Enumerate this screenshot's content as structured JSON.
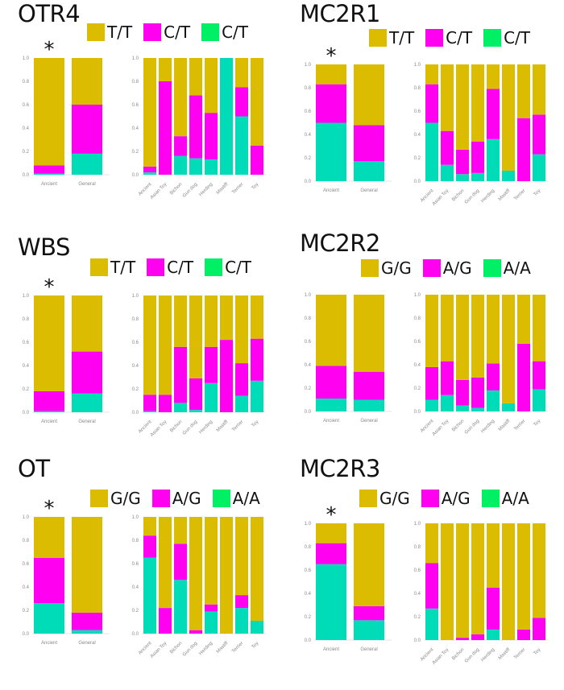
{
  "colors": {
    "top": "#dcbc00",
    "mid": "#ff00f0",
    "bottom": "#00dbb8",
    "legend_bottom": "#00f065"
  },
  "chart_data": [
    {
      "type": "bar",
      "stacked": true,
      "title": "OTR4",
      "legend": [
        "T/T",
        "C/T",
        "C/T"
      ],
      "significance_marker": "*",
      "significance_on": "Ancient",
      "ylim": [
        0,
        1
      ],
      "yticks": [
        "0.0",
        "0.2",
        "0.4",
        "0.6",
        "0.8",
        "1.0"
      ],
      "left": {
        "categories": [
          "Ancient",
          "General"
        ],
        "series": [
          {
            "name": "bottom",
            "values": [
              0.01,
              0.18
            ]
          },
          {
            "name": "mid",
            "values": [
              0.07,
              0.42
            ]
          },
          {
            "name": "top",
            "values": [
              0.92,
              0.4
            ]
          }
        ]
      },
      "right": {
        "categories": [
          "Ancient",
          "Asian Toy",
          "Bichon",
          "Gun dog",
          "Herding",
          "Mastiff",
          "Terrier",
          "Toy"
        ],
        "series": [
          {
            "name": "bottom",
            "values": [
              0.02,
              0.0,
              0.16,
              0.14,
              0.13,
              1.0,
              0.5,
              0.0
            ]
          },
          {
            "name": "mid",
            "values": [
              0.05,
              0.8,
              0.17,
              0.54,
              0.4,
              0.0,
              0.25,
              0.25
            ]
          },
          {
            "name": "top",
            "values": [
              0.93,
              0.2,
              0.67,
              0.32,
              0.47,
              0.0,
              0.25,
              0.75
            ]
          }
        ]
      }
    },
    {
      "type": "bar",
      "stacked": true,
      "title": "MC2R1",
      "legend": [
        "T/T",
        "C/T",
        "C/T"
      ],
      "significance_marker": "*",
      "significance_on": "Ancient",
      "ylim": [
        0,
        1
      ],
      "yticks": [
        "0.0",
        "0.2",
        "0.4",
        "0.6",
        "0.8",
        "1.0"
      ],
      "left": {
        "categories": [
          "Ancient",
          "General"
        ],
        "series": [
          {
            "name": "bottom",
            "values": [
              0.5,
              0.17
            ]
          },
          {
            "name": "mid",
            "values": [
              0.33,
              0.31
            ]
          },
          {
            "name": "top",
            "values": [
              0.17,
              0.52
            ]
          }
        ]
      },
      "right": {
        "categories": [
          "Ancient",
          "Asian Toy",
          "Bichon",
          "Gun dog",
          "Herding",
          "Mastiff",
          "Terrier",
          "Toy"
        ],
        "series": [
          {
            "name": "bottom",
            "values": [
              0.5,
              0.14,
              0.06,
              0.07,
              0.36,
              0.09,
              0.0,
              0.23
            ]
          },
          {
            "name": "mid",
            "values": [
              0.33,
              0.29,
              0.21,
              0.27,
              0.43,
              0.0,
              0.54,
              0.34
            ]
          },
          {
            "name": "top",
            "values": [
              0.17,
              0.57,
              0.73,
              0.66,
              0.21,
              0.91,
              0.46,
              0.43
            ]
          }
        ]
      }
    },
    {
      "type": "bar",
      "stacked": true,
      "title": "WBS",
      "legend": [
        "T/T",
        "C/T",
        "C/T"
      ],
      "significance_marker": "*",
      "significance_on": "Ancient",
      "ylim": [
        0,
        1
      ],
      "yticks": [
        "0.0",
        "0.2",
        "0.4",
        "0.6",
        "0.8",
        "1.0"
      ],
      "left": {
        "categories": [
          "Ancient",
          "General"
        ],
        "series": [
          {
            "name": "bottom",
            "values": [
              0.01,
              0.16
            ]
          },
          {
            "name": "mid",
            "values": [
              0.17,
              0.36
            ]
          },
          {
            "name": "top",
            "values": [
              0.82,
              0.48
            ]
          }
        ]
      },
      "right": {
        "categories": [
          "Ancient",
          "Asian Toy",
          "Bichon",
          "Gun dog",
          "Herding",
          "Mastiff",
          "Terrier",
          "Toy"
        ],
        "series": [
          {
            "name": "bottom",
            "values": [
              0.01,
              0.0,
              0.08,
              0.02,
              0.25,
              0.0,
              0.14,
              0.27
            ]
          },
          {
            "name": "mid",
            "values": [
              0.14,
              0.15,
              0.48,
              0.27,
              0.31,
              0.62,
              0.28,
              0.36
            ]
          },
          {
            "name": "top",
            "values": [
              0.85,
              0.85,
              0.44,
              0.71,
              0.44,
              0.38,
              0.58,
              0.37
            ]
          }
        ]
      }
    },
    {
      "type": "bar",
      "stacked": true,
      "title": "MC2R2",
      "legend": [
        "G/G",
        "A/G",
        "A/A"
      ],
      "significance_marker": "",
      "significance_on": "",
      "ylim": [
        0,
        1
      ],
      "yticks": [
        "0.0",
        "0.2",
        "0.4",
        "0.6",
        "0.8",
        "1.0"
      ],
      "left": {
        "categories": [
          "Ancient",
          "General"
        ],
        "series": [
          {
            "name": "bottom",
            "values": [
              0.11,
              0.1
            ]
          },
          {
            "name": "mid",
            "values": [
              0.28,
              0.24
            ]
          },
          {
            "name": "top",
            "values": [
              0.61,
              0.66
            ]
          }
        ]
      },
      "right": {
        "categories": [
          "Ancient",
          "Asian Toy",
          "Bichon",
          "Gun dog",
          "Herding",
          "Mastiff",
          "Terrier",
          "Toy"
        ],
        "series": [
          {
            "name": "bottom",
            "values": [
              0.1,
              0.14,
              0.05,
              0.03,
              0.18,
              0.07,
              0.0,
              0.19
            ]
          },
          {
            "name": "mid",
            "values": [
              0.28,
              0.29,
              0.22,
              0.26,
              0.23,
              0.0,
              0.58,
              0.24
            ]
          },
          {
            "name": "top",
            "values": [
              0.62,
              0.57,
              0.73,
              0.71,
              0.59,
              0.93,
              0.42,
              0.57
            ]
          }
        ]
      }
    },
    {
      "type": "bar",
      "stacked": true,
      "title": "OT",
      "legend": [
        "G/G",
        "A/G",
        "A/A"
      ],
      "significance_marker": "*",
      "significance_on": "Ancient",
      "ylim": [
        0,
        1
      ],
      "yticks": [
        "0.0",
        "0.2",
        "0.4",
        "0.6",
        "0.8",
        "1.0"
      ],
      "left": {
        "categories": [
          "Ancient",
          "General"
        ],
        "series": [
          {
            "name": "bottom",
            "values": [
              0.26,
              0.03
            ]
          },
          {
            "name": "mid",
            "values": [
              0.39,
              0.15
            ]
          },
          {
            "name": "top",
            "values": [
              0.35,
              0.82
            ]
          }
        ]
      },
      "right": {
        "categories": [
          "Ancient",
          "Asian Toy",
          "Bichon",
          "Gun dog",
          "Herding",
          "Mastiff",
          "Terrier",
          "Toy"
        ],
        "series": [
          {
            "name": "bottom",
            "values": [
              0.65,
              0.0,
              0.46,
              0.0,
              0.19,
              0.0,
              0.22,
              0.11
            ]
          },
          {
            "name": "mid",
            "values": [
              0.19,
              0.22,
              0.31,
              0.03,
              0.06,
              0.0,
              0.11,
              0.0
            ]
          },
          {
            "name": "top",
            "values": [
              0.16,
              0.78,
              0.23,
              0.97,
              0.75,
              1.0,
              0.67,
              0.89
            ]
          }
        ]
      }
    },
    {
      "type": "bar",
      "stacked": true,
      "title": "MC2R3",
      "legend": [
        "G/G",
        "A/G",
        "A/A"
      ],
      "significance_marker": "*",
      "significance_on": "Ancient",
      "ylim": [
        0,
        1
      ],
      "yticks": [
        "0.0",
        "0.2",
        "0.4",
        "0.6",
        "0.8",
        "1.0"
      ],
      "left": {
        "categories": [
          "Ancient",
          "General"
        ],
        "series": [
          {
            "name": "bottom",
            "values": [
              0.65,
              0.17
            ]
          },
          {
            "name": "mid",
            "values": [
              0.18,
              0.12
            ]
          },
          {
            "name": "top",
            "values": [
              0.17,
              0.71
            ]
          }
        ]
      },
      "right": {
        "categories": [
          "Ancient",
          "Asian Toy",
          "Bichon",
          "Gun dog",
          "Herding",
          "Mastiff",
          "Terrier",
          "Toy"
        ],
        "series": [
          {
            "name": "bottom",
            "values": [
              0.27,
              0.0,
              0.0,
              0.0,
              0.09,
              0.0,
              0.0,
              0.0
            ]
          },
          {
            "name": "mid",
            "values": [
              0.39,
              0.0,
              0.02,
              0.05,
              0.36,
              0.0,
              0.09,
              0.19
            ]
          },
          {
            "name": "top",
            "values": [
              0.34,
              1.0,
              0.98,
              0.95,
              0.55,
              1.0,
              0.91,
              0.81
            ]
          }
        ]
      }
    }
  ]
}
